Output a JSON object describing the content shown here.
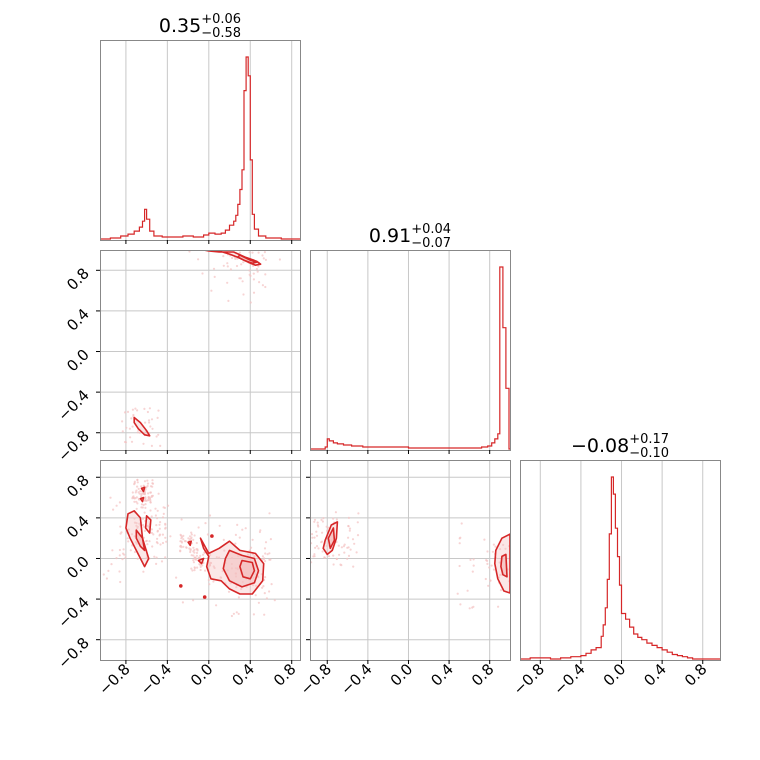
{
  "chart_data": {
    "type": "corner",
    "color": "#d62728",
    "fill_color": "#f4c2c2",
    "grid": true,
    "ticks": [
      -0.8,
      -0.4,
      0.0,
      0.4,
      0.8
    ],
    "tick_labels": [
      "−0.8",
      "−0.4",
      "0.0",
      "0.4",
      "0.8"
    ],
    "parameters": [
      {
        "range": [
          -1.05,
          0.88
        ],
        "title_value": "0.35",
        "title_plus": "+0.06",
        "title_minus": "−0.58"
      },
      {
        "range": [
          -0.97,
          1.0
        ],
        "title_value": "0.91",
        "title_plus": "+0.04",
        "title_minus": "−0.07"
      },
      {
        "range": [
          -1.0,
          0.97
        ],
        "title_value": "−0.08",
        "title_plus": "+0.17",
        "title_minus": "−0.10"
      }
    ],
    "histograms": [
      {
        "param": 0,
        "bin_edges": [
          -1.05,
          -0.95,
          -0.85,
          -0.78,
          -0.72,
          -0.67,
          -0.64,
          -0.62,
          -0.6,
          -0.57,
          -0.53,
          -0.45,
          -0.35,
          -0.25,
          -0.15,
          -0.05,
          0.0,
          0.06,
          0.12,
          0.16,
          0.2,
          0.24,
          0.26,
          0.28,
          0.3,
          0.32,
          0.34,
          0.36,
          0.38,
          0.4,
          0.42,
          0.44,
          0.48,
          0.55,
          0.7,
          0.88
        ],
        "counts": [
          0,
          1,
          3,
          5,
          8,
          12,
          18,
          30,
          20,
          8,
          3,
          2,
          2,
          3,
          2,
          4,
          6,
          5,
          6,
          9,
          14,
          18,
          24,
          35,
          50,
          70,
          150,
          184,
          165,
          80,
          25,
          10,
          3,
          1,
          0
        ]
      },
      {
        "param": 1,
        "bin_edges": [
          -0.97,
          -0.82,
          -0.8,
          -0.78,
          -0.74,
          -0.7,
          -0.64,
          -0.56,
          -0.45,
          -0.3,
          -0.15,
          0.0,
          0.2,
          0.4,
          0.6,
          0.72,
          0.78,
          0.82,
          0.85,
          0.88,
          0.9,
          0.93,
          0.96,
          0.99,
          1.0
        ],
        "counts": [
          0,
          2,
          10,
          8,
          6,
          5,
          4,
          3,
          2,
          2,
          2,
          1,
          1,
          1,
          1,
          2,
          3,
          6,
          10,
          15,
          180,
          120,
          60,
          0
        ]
      },
      {
        "param": 2,
        "bin_edges": [
          -1.0,
          -0.9,
          -0.8,
          -0.7,
          -0.6,
          -0.5,
          -0.4,
          -0.35,
          -0.3,
          -0.25,
          -0.2,
          -0.18,
          -0.16,
          -0.14,
          -0.12,
          -0.1,
          -0.08,
          -0.06,
          -0.04,
          -0.02,
          0.0,
          0.04,
          0.08,
          0.12,
          0.16,
          0.2,
          0.25,
          0.3,
          0.35,
          0.4,
          0.45,
          0.5,
          0.55,
          0.6,
          0.65,
          0.7,
          0.8,
          0.97
        ],
        "counts": [
          0,
          1,
          1,
          0,
          1,
          2,
          3,
          5,
          8,
          10,
          20,
          30,
          45,
          70,
          110,
          160,
          145,
          115,
          90,
          65,
          40,
          35,
          28,
          22,
          19,
          17,
          14,
          12,
          10,
          8,
          6,
          4,
          3,
          2,
          1,
          0,
          0
        ]
      }
    ],
    "panels_2d": [
      {
        "x_param": 0,
        "y_param": 1,
        "contours": [
          {
            "level": "outer",
            "points": [
              [
                0.24,
                0.98
              ],
              [
                0.35,
                0.93
              ],
              [
                0.46,
                0.89
              ],
              [
                0.5,
                0.86
              ],
              [
                0.45,
                0.85
              ],
              [
                0.38,
                0.88
              ],
              [
                0.3,
                0.92
              ],
              [
                0.2,
                0.96
              ],
              [
                0.1,
                0.99
              ],
              [
                -0.05,
                1.0
              ],
              [
                0.0,
                0.99
              ],
              [
                0.1,
                0.98
              ]
            ]
          },
          {
            "level": "inner",
            "points": [
              [
                0.3,
                0.95
              ],
              [
                0.4,
                0.9
              ],
              [
                0.46,
                0.88
              ],
              [
                0.42,
                0.87
              ],
              [
                0.34,
                0.9
              ],
              [
                0.28,
                0.93
              ]
            ]
          },
          {
            "level": "outer",
            "points": [
              [
                -0.72,
                -0.65
              ],
              [
                -0.66,
                -0.7
              ],
              [
                -0.6,
                -0.78
              ],
              [
                -0.57,
                -0.83
              ],
              [
                -0.62,
                -0.82
              ],
              [
                -0.68,
                -0.76
              ],
              [
                -0.72,
                -0.7
              ]
            ]
          }
        ]
      },
      {
        "x_param": 0,
        "y_param": 2,
        "contours": [
          {
            "level": "outer",
            "points": [
              [
                -0.78,
                0.44
              ],
              [
                -0.72,
                0.47
              ],
              [
                -0.66,
                0.4
              ],
              [
                -0.64,
                0.2
              ],
              [
                -0.58,
                0.0
              ],
              [
                -0.62,
                -0.08
              ],
              [
                -0.7,
                0.08
              ],
              [
                -0.76,
                0.2
              ],
              [
                -0.8,
                0.3
              ]
            ]
          },
          {
            "level": "inner",
            "points": [
              [
                -0.7,
                0.28
              ],
              [
                -0.64,
                0.2
              ],
              [
                -0.62,
                0.08
              ],
              [
                -0.66,
                0.12
              ],
              [
                -0.7,
                0.2
              ]
            ]
          },
          {
            "level": "outer",
            "points": [
              [
                -0.6,
                0.42
              ],
              [
                -0.56,
                0.38
              ],
              [
                -0.57,
                0.25
              ],
              [
                -0.61,
                0.3
              ]
            ]
          },
          {
            "level": "outer",
            "points": [
              [
                -0.08,
                0.2
              ],
              [
                0.0,
                0.05
              ],
              [
                0.1,
                0.1
              ],
              [
                0.2,
                0.17
              ],
              [
                0.3,
                0.08
              ],
              [
                0.45,
                0.05
              ],
              [
                0.53,
                -0.05
              ],
              [
                0.52,
                -0.22
              ],
              [
                0.42,
                -0.35
              ],
              [
                0.3,
                -0.35
              ],
              [
                0.2,
                -0.3
              ],
              [
                0.12,
                -0.22
              ],
              [
                0.02,
                -0.2
              ],
              [
                -0.02,
                -0.08
              ],
              [
                0.0,
                0.02
              ],
              [
                -0.05,
                0.1
              ]
            ]
          },
          {
            "level": "middle",
            "points": [
              [
                0.2,
                0.08
              ],
              [
                0.32,
                0.03
              ],
              [
                0.44,
                0.0
              ],
              [
                0.48,
                -0.12
              ],
              [
                0.44,
                -0.24
              ],
              [
                0.32,
                -0.28
              ],
              [
                0.2,
                -0.22
              ],
              [
                0.14,
                -0.1
              ],
              [
                0.16,
                0.0
              ]
            ]
          },
          {
            "level": "inner",
            "points": [
              [
                0.32,
                -0.02
              ],
              [
                0.42,
                -0.04
              ],
              [
                0.44,
                -0.12
              ],
              [
                0.4,
                -0.2
              ],
              [
                0.33,
                -0.18
              ],
              [
                0.3,
                -0.08
              ]
            ]
          },
          {
            "level": "outer",
            "points": [
              [
                -0.2,
                0.16
              ],
              [
                -0.17,
                0.17
              ],
              [
                -0.18,
                0.13
              ]
            ]
          },
          {
            "level": "outer",
            "points": [
              [
                -0.1,
                -0.02
              ],
              [
                -0.05,
                0.0
              ],
              [
                -0.07,
                -0.05
              ]
            ]
          },
          {
            "level": "outer",
            "points": [
              [
                -0.65,
                0.69
              ],
              [
                -0.62,
                0.7
              ],
              [
                -0.63,
                0.66
              ]
            ]
          },
          {
            "level": "outer",
            "points": [
              [
                -0.66,
                0.59
              ],
              [
                -0.63,
                0.6
              ],
              [
                -0.64,
                0.56
              ]
            ]
          }
        ],
        "markers": [
          [
            -0.27,
            -0.27
          ],
          [
            -0.04,
            -0.38
          ],
          [
            0.03,
            0.22
          ]
        ]
      },
      {
        "x_param": 1,
        "y_param": 2,
        "contours": [
          {
            "level": "outer",
            "points": [
              [
                -0.82,
                0.18
              ],
              [
                -0.76,
                0.33
              ],
              [
                -0.7,
                0.36
              ],
              [
                -0.71,
                0.2
              ],
              [
                -0.75,
                0.08
              ],
              [
                -0.8,
                0.04
              ],
              [
                -0.84,
                0.1
              ]
            ]
          },
          {
            "level": "inner",
            "points": [
              [
                -0.79,
                0.2
              ],
              [
                -0.74,
                0.3
              ],
              [
                -0.73,
                0.18
              ],
              [
                -0.77,
                0.1
              ]
            ]
          },
          {
            "level": "outer",
            "points": [
              [
                0.86,
                0.08
              ],
              [
                0.92,
                0.2
              ],
              [
                1.0,
                0.24
              ],
              [
                1.0,
                -0.34
              ],
              [
                0.94,
                -0.32
              ],
              [
                0.88,
                -0.2
              ],
              [
                0.85,
                -0.05
              ]
            ]
          },
          {
            "level": "inner",
            "points": [
              [
                0.92,
                0.02
              ],
              [
                0.96,
                0.04
              ],
              [
                0.97,
                -0.18
              ],
              [
                0.93,
                -0.16
              ],
              [
                0.91,
                -0.08
              ]
            ]
          }
        ]
      }
    ]
  }
}
